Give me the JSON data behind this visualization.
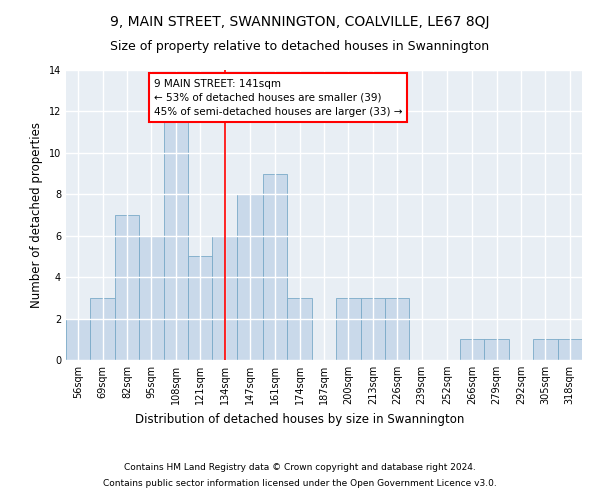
{
  "title": "9, MAIN STREET, SWANNINGTON, COALVILLE, LE67 8QJ",
  "subtitle": "Size of property relative to detached houses in Swannington",
  "xlabel": "Distribution of detached houses by size in Swannington",
  "ylabel": "Number of detached properties",
  "categories": [
    "56sqm",
    "69sqm",
    "82sqm",
    "95sqm",
    "108sqm",
    "121sqm",
    "134sqm",
    "147sqm",
    "161sqm",
    "174sqm",
    "187sqm",
    "200sqm",
    "213sqm",
    "226sqm",
    "239sqm",
    "252sqm",
    "266sqm",
    "279sqm",
    "292sqm",
    "305sqm",
    "318sqm"
  ],
  "values": [
    2,
    3,
    7,
    6,
    12,
    5,
    6,
    8,
    9,
    3,
    0,
    3,
    3,
    3,
    0,
    0,
    1,
    1,
    0,
    1,
    1
  ],
  "bar_color": "#c9d9ea",
  "bar_edge_color": "#7aaac8",
  "bin_edges": [
    56,
    69,
    82,
    95,
    108,
    121,
    134,
    147,
    161,
    174,
    187,
    200,
    213,
    226,
    239,
    252,
    266,
    279,
    292,
    305,
    318,
    331
  ],
  "annotation_text": "9 MAIN STREET: 141sqm\n← 53% of detached houses are smaller (39)\n45% of semi-detached houses are larger (33) →",
  "red_line_x": 141,
  "ylim": [
    0,
    14
  ],
  "yticks": [
    0,
    2,
    4,
    6,
    8,
    10,
    12,
    14
  ],
  "footnote1": "Contains HM Land Registry data © Crown copyright and database right 2024.",
  "footnote2": "Contains public sector information licensed under the Open Government Licence v3.0.",
  "bg_color": "#ffffff",
  "plot_bg_color": "#e8eef4",
  "grid_color": "#ffffff",
  "title_fontsize": 10,
  "subtitle_fontsize": 9,
  "axis_label_fontsize": 8.5,
  "tick_fontsize": 7,
  "annotation_fontsize": 7.5,
  "footnote_fontsize": 6.5
}
